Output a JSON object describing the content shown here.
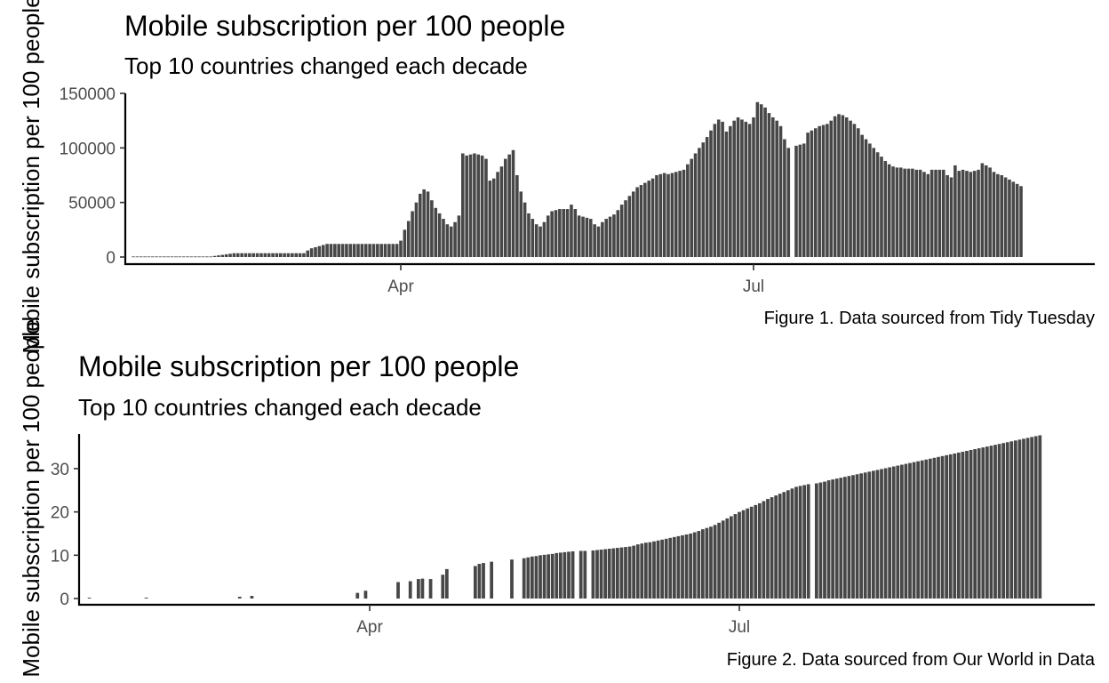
{
  "chart_data": [
    {
      "type": "bar",
      "title": "Mobile subscription per 100 people",
      "subtitle": "Top 10 countries changed each decade",
      "xlabel": "",
      "ylabel": "Mobile subscription per 100 people",
      "caption": "Figure 1. Data sourced from Tidy Tuesday",
      "x_ticks": [
        "Apr",
        "Jul"
      ],
      "x_tick_days": [
        91,
        182
      ],
      "y_ticks": [
        0,
        50000,
        100000,
        150000
      ],
      "ylim": [
        0,
        150000
      ],
      "xlim_days": [
        0,
        264
      ],
      "grid": false,
      "legend": "none",
      "bar_color": "#474747",
      "days_start": 22,
      "values": [
        500,
        500,
        500,
        500,
        500,
        500,
        500,
        500,
        500,
        500,
        500,
        500,
        500,
        500,
        500,
        500,
        500,
        500,
        500,
        500,
        500,
        1000,
        1500,
        2000,
        2500,
        3000,
        3500,
        3500,
        3500,
        3500,
        3500,
        3500,
        3500,
        3500,
        3500,
        3500,
        3500,
        3500,
        3500,
        3500,
        3500,
        3500,
        3500,
        3500,
        3500,
        6000,
        8000,
        9000,
        10000,
        11000,
        12000,
        12000,
        12000,
        12000,
        12000,
        12000,
        12000,
        12000,
        12000,
        12000,
        12000,
        12000,
        12000,
        12000,
        12000,
        12000,
        12000,
        12000,
        12000,
        15000,
        25000,
        33000,
        42000,
        50000,
        58000,
        62000,
        60000,
        52000,
        45000,
        40000,
        35000,
        30000,
        28000,
        32000,
        38000,
        95000,
        93000,
        94000,
        95000,
        94000,
        93000,
        90000,
        70000,
        72000,
        78000,
        83000,
        90000,
        94000,
        98000,
        75000,
        60000,
        50000,
        40000,
        35000,
        30000,
        28000,
        32000,
        38000,
        42000,
        43000,
        44000,
        44000,
        44000,
        48000,
        44000,
        38000,
        37000,
        36000,
        35000,
        30000,
        28000,
        32000,
        35000,
        37000,
        39000,
        43000,
        48000,
        52000,
        56000,
        60000,
        64000,
        66000,
        68000,
        70000,
        72000,
        75000,
        76000,
        77000,
        76000,
        77000,
        78000,
        79000,
        80000,
        85000,
        90000,
        95000,
        100000,
        105000,
        110000,
        116000,
        122000,
        126000,
        124000,
        115000,
        120000,
        125000,
        128000,
        126000,
        124000,
        122000,
        128000,
        142000,
        140000,
        137000,
        132000,
        128000,
        125000,
        120000,
        108000,
        100000,
        null,
        102000,
        103000,
        104000,
        114000,
        116000,
        118000,
        120000,
        121000,
        122000,
        125000,
        129000,
        131000,
        130000,
        128000,
        125000,
        122000,
        118000,
        112000,
        108000,
        104000,
        100000,
        96000,
        92000,
        88000,
        85000,
        83000,
        82000,
        82000,
        81000,
        81000,
        81000,
        80000,
        80000,
        78000,
        76000,
        80000,
        80000,
        80000,
        80000,
        75000,
        73000,
        84000,
        79000,
        80000,
        79000,
        78000,
        79000,
        80000,
        86000,
        84000,
        82000,
        78000,
        76000,
        75000,
        73000,
        71000,
        69000,
        67000,
        65000
      ]
    },
    {
      "type": "bar",
      "title": "Mobile subscription per 100 people",
      "subtitle": "Top 10 countries changed each decade",
      "xlabel": "",
      "ylabel": "Mobile subscription per 100 people",
      "caption": "Figure 2. Data sourced from Our World in Data",
      "x_ticks": [
        "Apr",
        "Jul"
      ],
      "x_tick_days": [
        91,
        182
      ],
      "y_ticks": [
        0,
        10,
        20,
        30
      ],
      "ylim": [
        0,
        38
      ],
      "xlim_days": [
        0,
        264
      ],
      "grid": false,
      "legend": "none",
      "bar_color": "#474747",
      "days_start": 22,
      "values": [
        0.2,
        null,
        null,
        null,
        null,
        null,
        null,
        null,
        null,
        null,
        null,
        null,
        null,
        null,
        0.2,
        null,
        null,
        null,
        null,
        null,
        null,
        null,
        null,
        null,
        null,
        null,
        null,
        null,
        null,
        null,
        null,
        null,
        null,
        null,
        null,
        null,
        null,
        0.4,
        null,
        null,
        0.6,
        null,
        null,
        null,
        null,
        null,
        null,
        null,
        null,
        null,
        null,
        null,
        null,
        null,
        null,
        null,
        null,
        null,
        null,
        null,
        null,
        null,
        null,
        null,
        null,
        null,
        1.3,
        null,
        1.8,
        null,
        null,
        null,
        null,
        null,
        null,
        null,
        3.8,
        null,
        null,
        4.0,
        null,
        4.5,
        4.6,
        null,
        4.5,
        null,
        null,
        5.5,
        6.8,
        null,
        null,
        null,
        null,
        null,
        null,
        7.5,
        8.0,
        8.2,
        null,
        8.5,
        null,
        null,
        null,
        null,
        9.0,
        null,
        null,
        9.3,
        9.5,
        9.7,
        9.8,
        10.0,
        10.1,
        10.2,
        10.3,
        10.5,
        10.6,
        10.7,
        10.8,
        10.9,
        null,
        11.0,
        11.0,
        null,
        11.1,
        11.2,
        11.3,
        11.4,
        11.5,
        11.6,
        11.7,
        11.8,
        11.9,
        12.0,
        12.2,
        12.5,
        12.7,
        12.9,
        13.0,
        13.2,
        13.4,
        13.6,
        13.8,
        14.0,
        14.2,
        14.4,
        14.6,
        14.8,
        15.0,
        15.3,
        15.6,
        16.0,
        16.3,
        16.6,
        17.0,
        17.5,
        18.0,
        18.5,
        19.0,
        19.5,
        20.0,
        20.4,
        20.8,
        21.2,
        21.6,
        22.0,
        22.5,
        23.0,
        23.4,
        23.8,
        24.2,
        24.6,
        25.0,
        25.4,
        25.8,
        26.0,
        26.2,
        26.4,
        null,
        26.6,
        26.8,
        27.0,
        27.3,
        27.5,
        27.7,
        27.9,
        28.1,
        28.3,
        28.5,
        28.7,
        28.9,
        29.1,
        29.3,
        29.5,
        29.7,
        29.9,
        30.1,
        30.3,
        30.5,
        30.7,
        30.9,
        31.1,
        31.3,
        31.5,
        31.7,
        31.9,
        32.1,
        32.3,
        32.5,
        32.7,
        32.9,
        33.1,
        33.3,
        33.5,
        33.7,
        33.9,
        34.1,
        34.3,
        34.5,
        34.7,
        34.9,
        35.1,
        35.3,
        35.5,
        35.7,
        35.9,
        36.1,
        36.3,
        36.5,
        36.7,
        36.9,
        37.1,
        37.3,
        37.5,
        37.7
      ]
    }
  ]
}
